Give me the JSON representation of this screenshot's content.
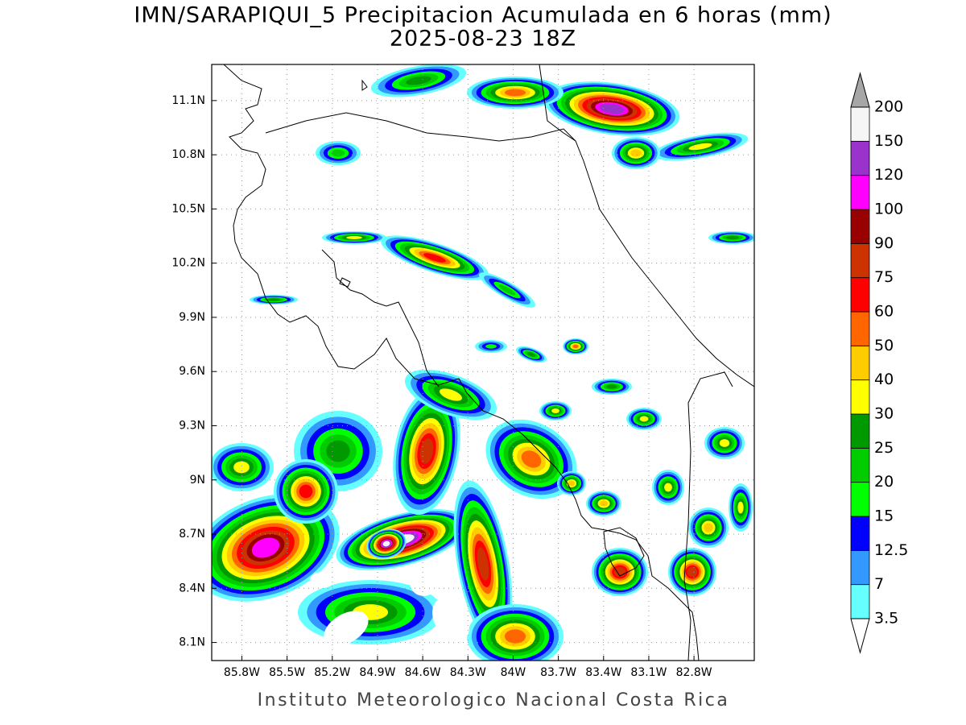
{
  "map": {
    "title": "IMN/SARAPIQUI_5 Precipitacion Acumulada en 6 horas (mm)",
    "subtitle": "2025-08-23 18Z",
    "footer": "Instituto Meteorologico Nacional Costa Rica",
    "lonlim": [
      -86.0,
      -82.4
    ],
    "latlim": [
      8.0,
      11.3
    ],
    "lonticks": [
      {
        "value": -85.8,
        "label": "85.8W"
      },
      {
        "value": -85.5,
        "label": "85.5W"
      },
      {
        "value": -85.2,
        "label": "85.2W"
      },
      {
        "value": -84.9,
        "label": "84.9W"
      },
      {
        "value": -84.6,
        "label": "84.6W"
      },
      {
        "value": -84.3,
        "label": "84.3W"
      },
      {
        "value": -84.0,
        "label": "84W"
      },
      {
        "value": -83.7,
        "label": "83.7W"
      },
      {
        "value": -83.4,
        "label": "83.4W"
      },
      {
        "value": -83.1,
        "label": "83.1W"
      },
      {
        "value": -82.8,
        "label": "82.8W"
      }
    ],
    "latticks": [
      {
        "value": 8.1,
        "label": "8.1N"
      },
      {
        "value": 8.4,
        "label": "8.4N"
      },
      {
        "value": 8.7,
        "label": "8.7N"
      },
      {
        "value": 9.0,
        "label": "9N"
      },
      {
        "value": 9.3,
        "label": "9.3N"
      },
      {
        "value": 9.6,
        "label": "9.6N"
      },
      {
        "value": 9.9,
        "label": "9.9N"
      },
      {
        "value": 10.2,
        "label": "10.2N"
      },
      {
        "value": 10.5,
        "label": "10.5N"
      },
      {
        "value": 10.8,
        "label": "10.8N"
      },
      {
        "value": 11.1,
        "label": "11.1N"
      }
    ],
    "grid": true,
    "colorbar": {
      "levels": [
        3.5,
        7,
        12.5,
        15,
        20,
        25,
        30,
        40,
        50,
        60,
        75,
        90,
        100,
        120,
        150,
        200
      ],
      "colors": [
        "#66ffff",
        "#3399ff",
        "#0000ff",
        "#00ff00",
        "#00cc00",
        "#009900",
        "#ffff00",
        "#ffcc00",
        "#ff6600",
        "#ff0000",
        "#cc3300",
        "#990000",
        "#ff00ff",
        "#9933cc",
        "#f5f5f5"
      ],
      "under_color": "#ffffff",
      "over_color": "#a6a6a6"
    }
  }
}
